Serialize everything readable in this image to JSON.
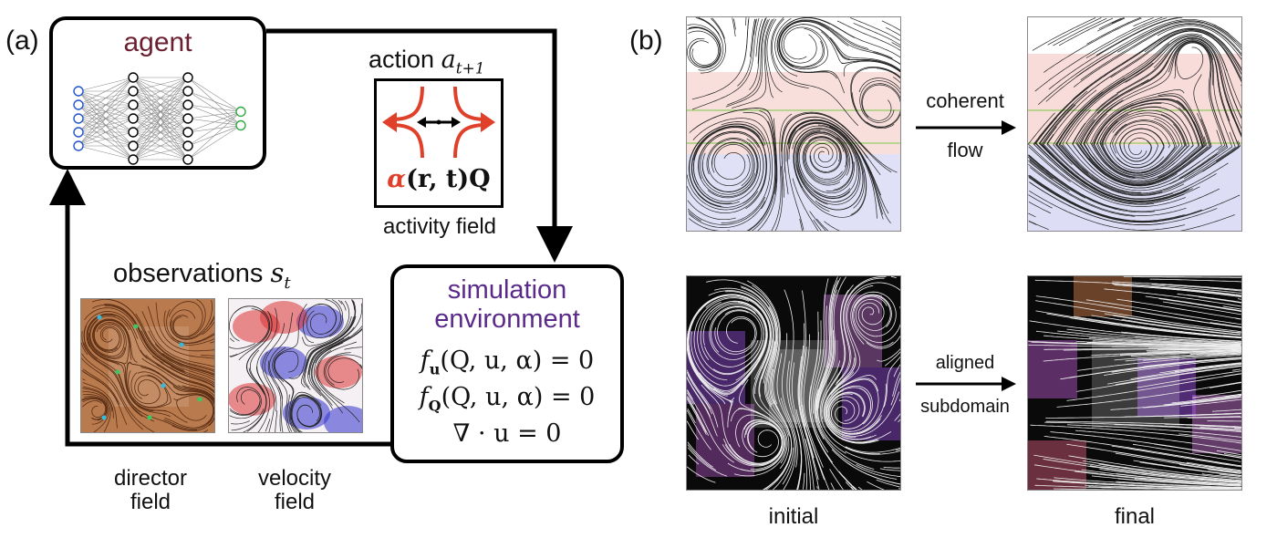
{
  "panel_a_label": "(a)",
  "panel_b_label": "(b)",
  "agent": {
    "title": "agent"
  },
  "action": {
    "label": "action",
    "symbol": "a",
    "subscript": "t+1",
    "alpha": "α",
    "field_expr": "(r, t)Q",
    "caption": "activity field"
  },
  "observations": {
    "label": "observations",
    "symbol": "s",
    "subscript": "t",
    "director_caption_1": "director",
    "director_caption_2": "field",
    "velocity_caption_1": "velocity",
    "velocity_caption_2": "field"
  },
  "simulation": {
    "title_1": "simulation",
    "title_2": "environment",
    "eq_1": "f_u(Q, u, α) = 0",
    "eq_1_f": "f",
    "eq_1_sub": "u",
    "eq_1_rest": "(Q, u, α) = 0",
    "eq_2_f": "f",
    "eq_2_sub": "Q",
    "eq_2_rest": "(Q, u, α) = 0",
    "eq_3": "∇ · u = 0"
  },
  "panel_b": {
    "top_arrow_label_1": "coherent",
    "top_arrow_label_2": "flow",
    "bottom_arrow_label_1": "aligned",
    "bottom_arrow_label_2": "subdomain",
    "caption_initial": "initial",
    "caption_final": "final"
  },
  "colors": {
    "agent_title": "#6b1f2f",
    "simulation_title": "#5a2a8a",
    "activity_arrows": "#e0402a",
    "input_nodes": "#2255cc",
    "output_nodes": "#33aa44"
  }
}
